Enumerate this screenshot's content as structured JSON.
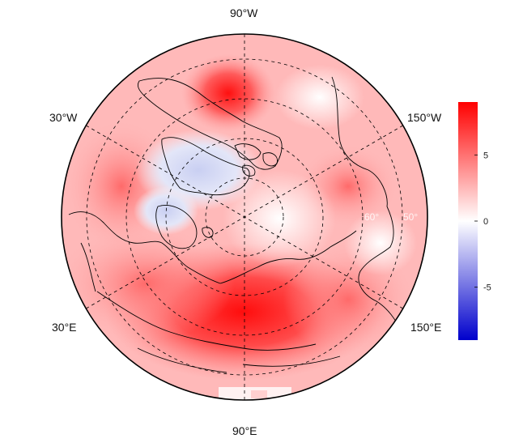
{
  "map": {
    "projection": "polar stereographic (north)",
    "longitude_labels": {
      "top": "90°W",
      "bottom": "90°E",
      "upper_left": "30°W",
      "upper_right": "150°W",
      "lower_left": "30°E",
      "lower_right": "150°E"
    },
    "faint_latitude_labels": [
      "60°",
      "50°"
    ],
    "graticule": "dashed"
  },
  "colorbar": {
    "ticks": [
      "5",
      "0",
      "-5"
    ],
    "tick_values": [
      5,
      0,
      -5
    ],
    "range": [
      -9,
      9
    ],
    "colors": {
      "low": "#0000cc",
      "mid": "#ffffff",
      "high": "#ff0000"
    }
  },
  "colors": {
    "land_outline": "#000000",
    "warm_core": "#ff1a1a",
    "cool_core": "#c8cff0"
  }
}
